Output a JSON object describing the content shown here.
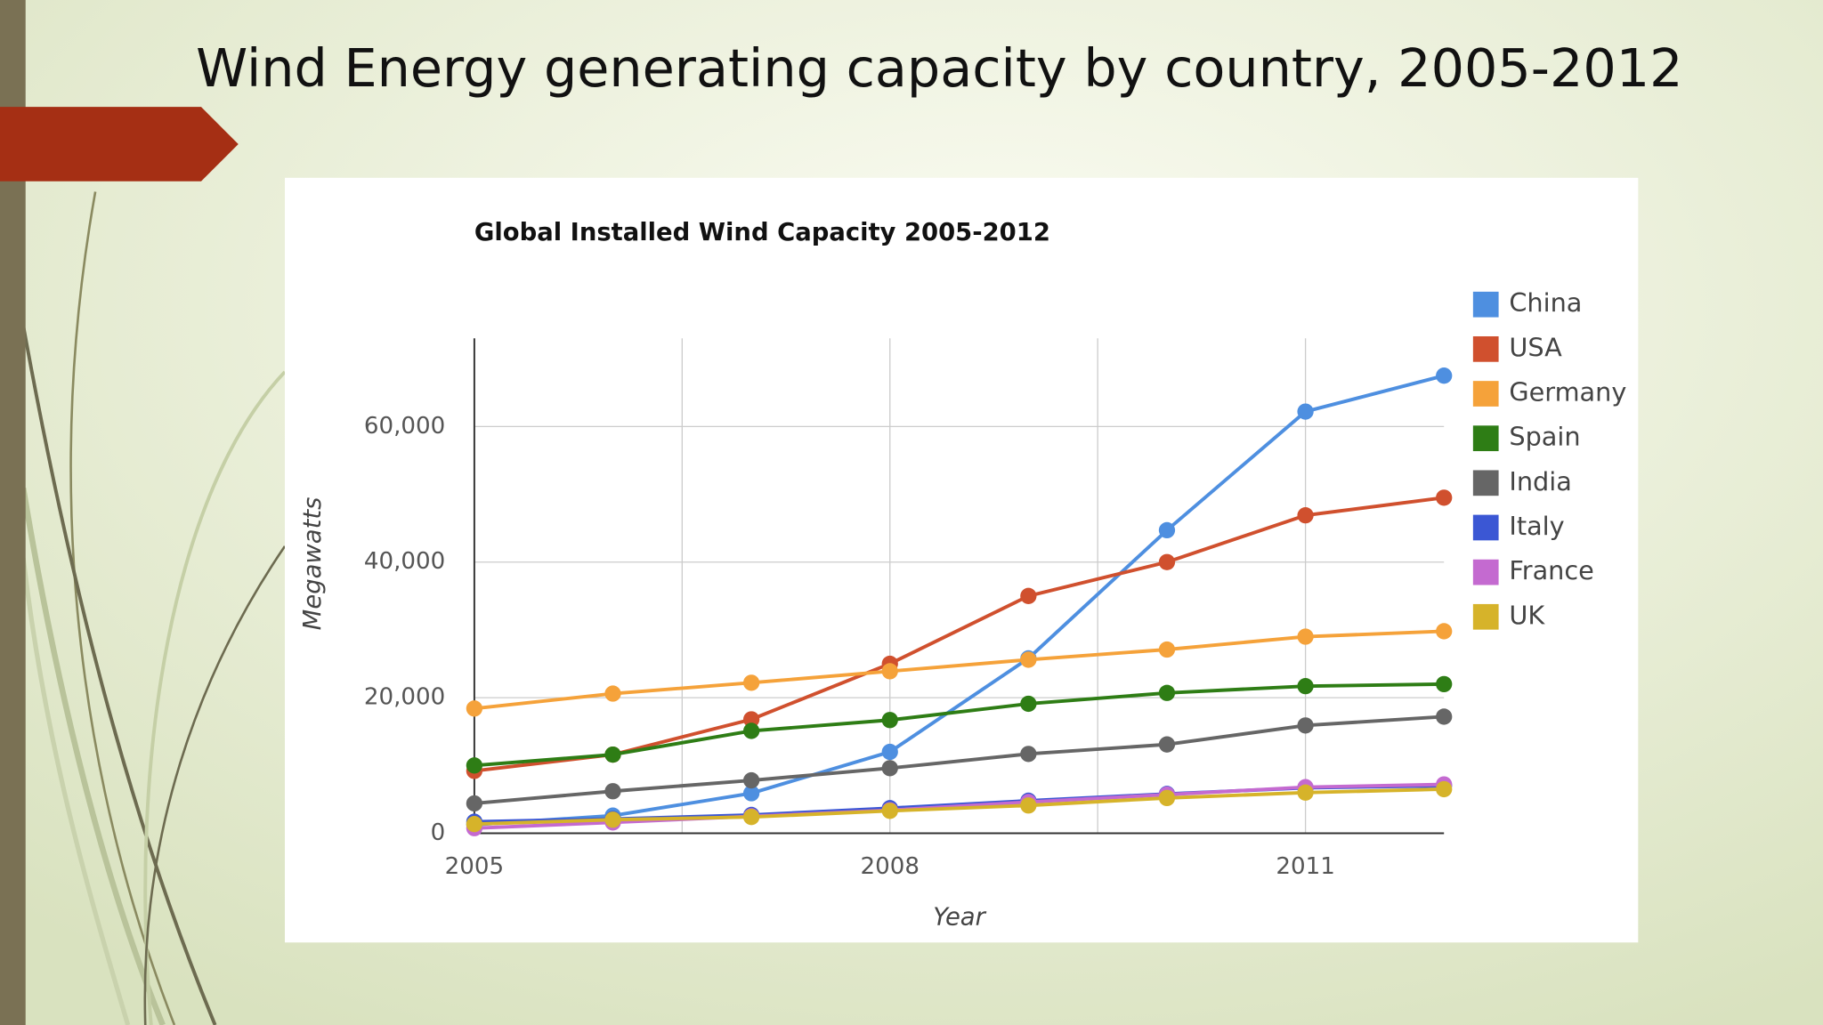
{
  "slide_title": "Wind Energy generating capacity by country, 2005-2012",
  "chart_data": {
    "type": "line",
    "title": "Global Installed Wind Capacity 2005-2012",
    "x_label": "Year",
    "y_label": "Megawatts",
    "x": [
      2005,
      2006,
      2007,
      2008,
      2009,
      2010,
      2011,
      2012
    ],
    "xlim": [
      2005,
      2012
    ],
    "xticks": [
      2005,
      2008,
      2011
    ],
    "ylim": [
      0,
      73000
    ],
    "yticks": [
      0,
      {
        "value": 20000,
        "label": "20,000"
      },
      {
        "value": 40000,
        "label": "40,000"
      },
      {
        "value": 60000,
        "label": "60,000"
      }
    ],
    "grid": true,
    "legend": "right",
    "series": [
      {
        "name": "China",
        "color": "#4e8fe0",
        "values": [
          1260,
          2600,
          5900,
          12000,
          25800,
          44700,
          62200,
          67500
        ]
      },
      {
        "name": "USA",
        "color": "#d0502e",
        "values": [
          9200,
          11600,
          16800,
          25000,
          35000,
          40000,
          46900,
          49500
        ]
      },
      {
        "name": "Germany",
        "color": "#f5a23a",
        "values": [
          18400,
          20600,
          22200,
          23900,
          25600,
          27100,
          29000,
          29800
        ]
      },
      {
        "name": "Spain",
        "color": "#2e7d15",
        "values": [
          10000,
          11600,
          15100,
          16700,
          19100,
          20700,
          21700,
          22000
        ]
      },
      {
        "name": "India",
        "color": "#666666",
        "values": [
          4400,
          6200,
          7800,
          9600,
          11700,
          13100,
          15900,
          17200
        ]
      },
      {
        "name": "Italy",
        "color": "#3b57d4",
        "values": [
          1700,
          2100,
          2700,
          3700,
          4800,
          5800,
          6700,
          7000
        ]
      },
      {
        "name": "France",
        "color": "#c46ad0",
        "values": [
          750,
          1600,
          2500,
          3400,
          4600,
          5700,
          6800,
          7200
        ]
      },
      {
        "name": "UK",
        "color": "#d6b32a",
        "values": [
          1350,
          2000,
          2400,
          3300,
          4100,
          5200,
          6000,
          6500
        ]
      }
    ]
  }
}
